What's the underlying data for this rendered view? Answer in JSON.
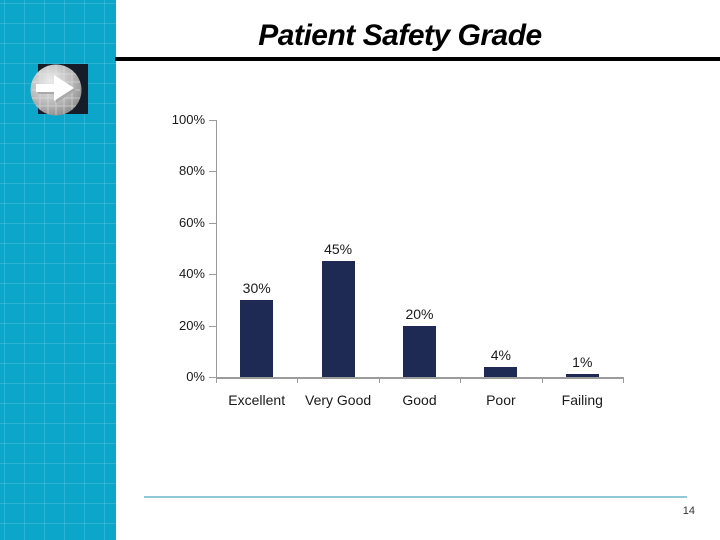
{
  "slide": {
    "title": "Patient Safety Grade",
    "page_number": "14"
  },
  "icons": {
    "sidebar_icon": "arrow-sphere-icon"
  },
  "colors": {
    "sidebar_teal": "#0BA6CA",
    "bar_navy": "#1E2A54",
    "axis_gray": "#9B9B9B",
    "label_dark": "#1a1a1a",
    "title_black": "#000000",
    "footer_line_teal": "#8FC9D9"
  },
  "chart_data": {
    "type": "bar",
    "title": "",
    "xlabel": "",
    "ylabel": "",
    "categories": [
      "Excellent",
      "Very Good",
      "Good",
      "Poor",
      "Failing"
    ],
    "values": [
      30,
      45,
      20,
      4,
      1
    ],
    "data_labels": [
      "30%",
      "45%",
      "20%",
      "4%",
      "1%"
    ],
    "y_ticks": [
      "0%",
      "20%",
      "40%",
      "60%",
      "80%",
      "100%"
    ],
    "ylim": [
      0,
      100
    ],
    "y_step": 20,
    "grid": false,
    "legend": false,
    "bar_color": "#1E2A54"
  }
}
